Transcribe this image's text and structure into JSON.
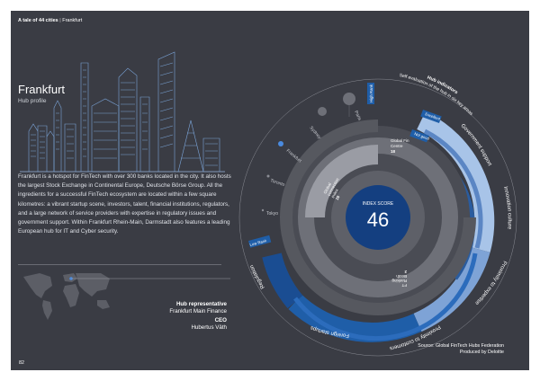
{
  "header": {
    "series": "A tale of 44 cities",
    "separator": "|",
    "city": "Frankfurt"
  },
  "title": "Frankfurt",
  "subtitle": "Hub profile",
  "body_text": "Frankfurt is a hotspot for FinTech with over 300 banks located in the city. It also hosts the largest Stock Exchange in Continental Europe, Deutsche Börse Group. All the ingredients for a successful FinTech ecosystem are located within a few square kilometres: a vibrant startup scene, investors, talent, financial institutions, regulators, and a large network of service providers with expertise in regulatory issues and government support. Within Frankfurt Rhein-Main, Darmstadt also features a leading European hub for IT and Cyber security.",
  "representative": {
    "role_label": "Hub representative",
    "role_value": "Frankfurt Main Finance",
    "ceo_label": "CEO",
    "ceo_value": "Hubertus Väth"
  },
  "chart": {
    "score_label": "INDEX SCORE",
    "score": "46",
    "hub_indicators_label": "Hub indicators",
    "self_eval_label": "Self evaluation of the hub in six key areas",
    "inner_labels": {
      "global_fin_centre": [
        "Global Fin",
        "Centre",
        "18"
      ],
      "global_connection": [
        "Global",
        "connection",
        "index",
        "16"
      ],
      "fintech_ranking": [
        "FT",
        "Ranking",
        "Booth",
        "2"
      ]
    },
    "badges": {
      "high_rank": "High Rank",
      "low_rank": "Low Rank",
      "excellent": "Excellent",
      "not_good": "Not good"
    },
    "peer_cities": [
      "Paris",
      "Sydney",
      "Frankfurt",
      "Toronto",
      "Tokyo"
    ],
    "areas": [
      "Government support",
      "Innovation culture",
      "Proximity to expertise",
      "Proximity to customers",
      "Foreign startups",
      "Regulation"
    ],
    "colors": {
      "page_bg": "#3a3c44",
      "primary_blue": "#1f5ea8",
      "score_blue": "#143f80",
      "light_blue": "#a8c4e8",
      "ring_grey": "#6e7078"
    }
  },
  "source": {
    "line1": "Source: Global FinTech Hubs Federation",
    "line2": "Produced by Deloitte"
  },
  "page_number": "82"
}
